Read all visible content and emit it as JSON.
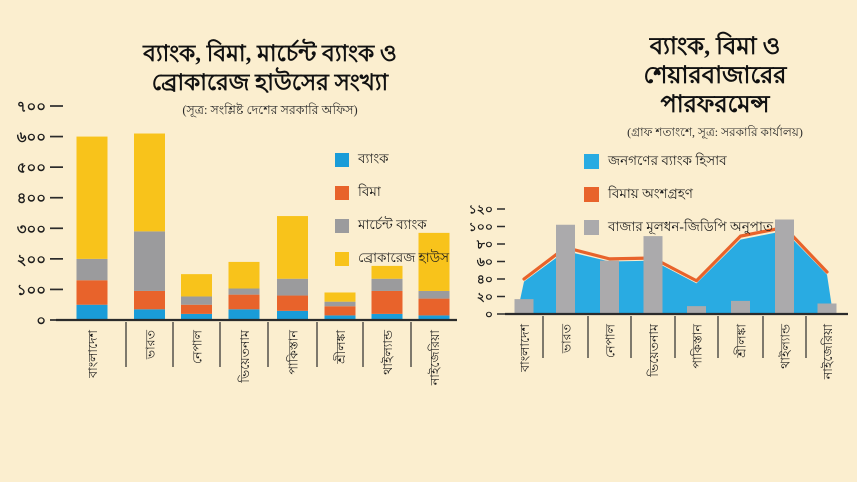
{
  "background": "#FBEECF",
  "chart_data": [
    {
      "type": "bar",
      "stacked": true,
      "title_lines": [
        "ব্যাংক, বিমা, মার্চেন্ট ব্যাংক ও",
        "ব্রোকারেজ হাউসের সংখ্যা"
      ],
      "subtitle": "(সূত্র: সংশ্লিষ্ট দেশের সরকারি অফিস)",
      "categories": [
        "বাংলাদেশ",
        "ভারত",
        "নেপাল",
        "ভিয়েতনাম",
        "পাকিস্তান",
        "শ্রীলঙ্কা",
        "থাইল্যান্ড",
        "নাইজেরিয়া"
      ],
      "series": [
        {
          "name": "ব্যাংক",
          "color": "#1A9CD8",
          "values": [
            50,
            35,
            20,
            35,
            30,
            15,
            20,
            15
          ]
        },
        {
          "name": "বিমা",
          "color": "#E8632B",
          "values": [
            80,
            60,
            30,
            48,
            50,
            30,
            75,
            55
          ]
        },
        {
          "name": "মার্চেন্ট ব্যাংক",
          "color": "#9B9B9D",
          "values": [
            70,
            195,
            27,
            20,
            55,
            15,
            40,
            25
          ]
        },
        {
          "name": "ব্রোকারেজ হাউস",
          "color": "#F8C31B",
          "values": [
            400,
            320,
            73,
            87,
            205,
            30,
            42,
            190
          ]
        }
      ],
      "ylim": [
        0,
        700
      ],
      "ytick_step": 100,
      "ytick_labels": [
        "০",
        "১০০",
        "২০০",
        "৩০০",
        "৪০০",
        "৫০০",
        "৬০০",
        "৭০০"
      ],
      "grid": false,
      "legend_position": "inside-right"
    },
    {
      "type": "area",
      "note": "blue = area series, orange = line stacked just above area, gray = bars drawn on top",
      "title_lines": [
        "ব্যাংক, বিমা ও",
        "শেয়ারবাজারের",
        "পারফরমেন্স"
      ],
      "subtitle": "(গ্রাফ শতাংশে, সূত্র: সরকারি কার্যালয়)",
      "categories": [
        "বাংলাদেশ",
        "ভারত",
        "নেপাল",
        "ভিয়েতনাম",
        "পাকিস্তান",
        "শ্রীলঙ্কা",
        "থাইল্যান্ড",
        "নাইজেরিয়া"
      ],
      "series": [
        {
          "name": "জনগণের ব্যাংক হিসাব",
          "kind": "area",
          "color": "#29ABE2",
          "values": [
            37,
            72,
            60,
            61,
            35,
            85,
            95,
            45
          ]
        },
        {
          "name": "বিমায় অংশগ্রহণ",
          "kind": "line",
          "color": "#E8632B",
          "values": [
            40,
            76,
            63,
            64,
            38,
            89,
            99,
            48
          ]
        },
        {
          "name": "বাজার মূলধন-জিডিপি অনুপাত",
          "kind": "bar",
          "color": "#ABAAAC",
          "values": [
            17,
            102,
            61,
            89,
            9,
            15,
            108,
            12
          ]
        }
      ],
      "ylim": [
        0,
        120
      ],
      "ytick_step": 20,
      "ytick_labels": [
        "০",
        "২০",
        "৪০",
        "৬০",
        "৮০",
        "১০০",
        "১২০"
      ],
      "grid": false,
      "legend_position": "top-center"
    }
  ]
}
